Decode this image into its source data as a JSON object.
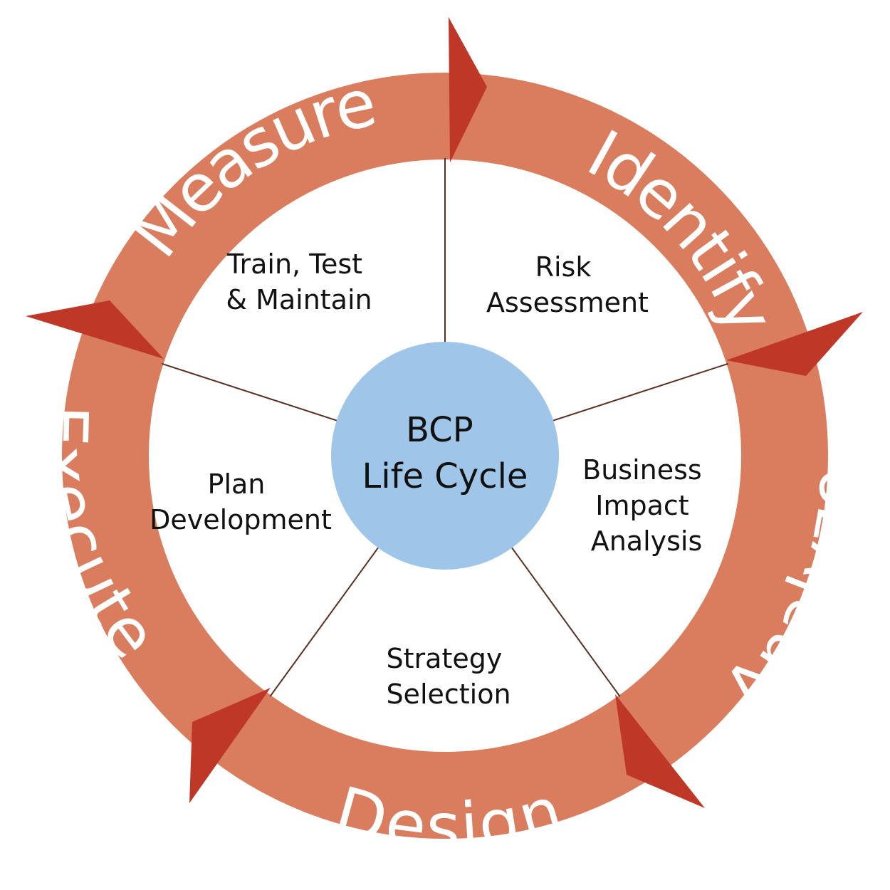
{
  "colors": {
    "ring": "#D97D5E",
    "arrow": "#BF3727",
    "hub": "#9FC6E8",
    "spoke": "#5A2E22",
    "ring_text": "#FFFFFF",
    "text": "#111111"
  },
  "ring_labels": [
    "Identify",
    "Analyze",
    "Design",
    "Execute",
    "Measure"
  ],
  "segments": [
    {
      "lines": [
        "Risk",
        "Assessment"
      ]
    },
    {
      "lines": [
        "Business",
        "Impact",
        "Analysis"
      ]
    },
    {
      "lines": [
        "Strategy",
        "Selection"
      ]
    },
    {
      "lines": [
        "Plan",
        "Development"
      ]
    },
    {
      "lines": [
        "Train, Test",
        "& Maintain"
      ]
    }
  ],
  "hub": {
    "lines": [
      "BCP",
      "Life Cycle"
    ]
  }
}
